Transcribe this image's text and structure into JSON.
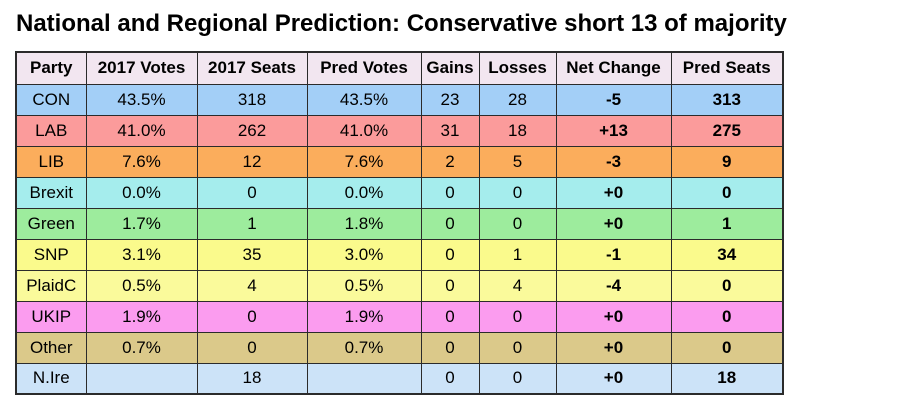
{
  "title": "National and Regional Prediction: Conservative short 13 of majority",
  "colors": {
    "header_bg": "#F2E6F0",
    "border": "#2B2B2B",
    "title_text": "#000000"
  },
  "chart_data": {
    "type": "table",
    "title": "National and Regional Prediction: Conservative short 13 of majority",
    "columns": {
      "party": "Party",
      "votes_2017": "2017 Votes",
      "seats_2017": "2017 Seats",
      "pred_votes": "Pred Votes",
      "gains": "Gains",
      "losses": "Losses",
      "net_change": "Net Change",
      "pred_seats": "Pred Seats"
    },
    "rows": [
      {
        "party": "CON",
        "votes_2017": "43.5%",
        "seats_2017": "318",
        "pred_votes": "43.5%",
        "gains": "23",
        "losses": "28",
        "net_change": "-5",
        "pred_seats": "313",
        "row_color": "#A3CFF7"
      },
      {
        "party": "LAB",
        "votes_2017": "41.0%",
        "seats_2017": "262",
        "pred_votes": "41.0%",
        "gains": "31",
        "losses": "18",
        "net_change": "+13",
        "pred_seats": "275",
        "row_color": "#FB9B9B"
      },
      {
        "party": "LIB",
        "votes_2017": "7.6%",
        "seats_2017": "12",
        "pred_votes": "7.6%",
        "gains": "2",
        "losses": "5",
        "net_change": "-3",
        "pred_seats": "9",
        "row_color": "#FBAD5C"
      },
      {
        "party": "Brexit",
        "votes_2017": "0.0%",
        "seats_2017": "0",
        "pred_votes": "0.0%",
        "gains": "0",
        "losses": "0",
        "net_change": "+0",
        "pred_seats": "0",
        "row_color": "#A5EDED"
      },
      {
        "party": "Green",
        "votes_2017": "1.7%",
        "seats_2017": "1",
        "pred_votes": "1.8%",
        "gains": "0",
        "losses": "0",
        "net_change": "+0",
        "pred_seats": "1",
        "row_color": "#9DEC9D"
      },
      {
        "party": "SNP",
        "votes_2017": "3.1%",
        "seats_2017": "35",
        "pred_votes": "3.0%",
        "gains": "0",
        "losses": "1",
        "net_change": "-1",
        "pred_seats": "34",
        "row_color": "#FAFA8C"
      },
      {
        "party": "PlaidC",
        "votes_2017": "0.5%",
        "seats_2017": "4",
        "pred_votes": "0.5%",
        "gains": "0",
        "losses": "4",
        "net_change": "-4",
        "pred_seats": "0",
        "row_color": "#FAFA9B"
      },
      {
        "party": "UKIP",
        "votes_2017": "1.9%",
        "seats_2017": "0",
        "pred_votes": "1.9%",
        "gains": "0",
        "losses": "0",
        "net_change": "+0",
        "pred_seats": "0",
        "row_color": "#FB9CEF"
      },
      {
        "party": "Other",
        "votes_2017": "0.7%",
        "seats_2017": "0",
        "pred_votes": "0.7%",
        "gains": "0",
        "losses": "0",
        "net_change": "+0",
        "pred_seats": "0",
        "row_color": "#DBC98A"
      },
      {
        "party": "N.Ire",
        "votes_2017": "",
        "seats_2017": "18",
        "pred_votes": "",
        "gains": "0",
        "losses": "0",
        "net_change": "+0",
        "pred_seats": "18",
        "row_color": "#CCE3F8"
      }
    ]
  }
}
